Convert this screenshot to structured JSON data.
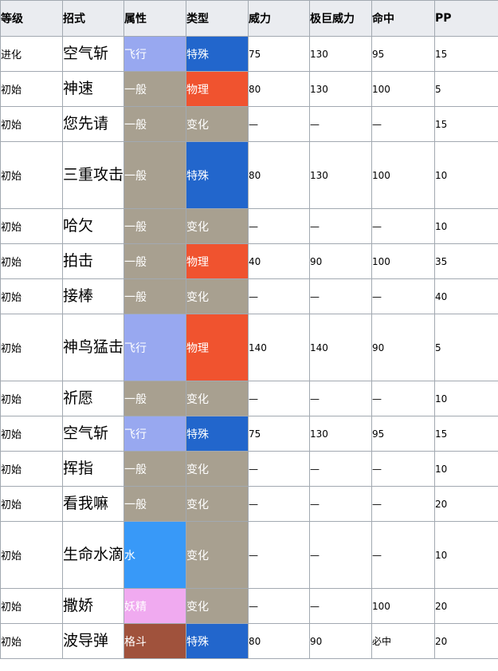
{
  "headers": {
    "level": "等级",
    "move": "招式",
    "type": "属性",
    "category": "类型",
    "power": "威力",
    "max_power": "极巨威力",
    "accuracy": "命中",
    "pp": "PP"
  },
  "colors": {
    "header_bg": "#eaecf0",
    "border": "#a2a9b1",
    "type_飞行": "#98a8f0",
    "type_一般": "#a8a090",
    "type_水": "#3899f8",
    "type_妖精": "#f0aaf0",
    "type_格斗": "#a0523c",
    "cat_特殊": "#2266cc",
    "cat_物理": "#f0532f",
    "cat_变化": "#a8a090"
  },
  "rows": [
    {
      "level": "进化",
      "move": "空气斩",
      "type": "飞行",
      "category": "特殊",
      "power": "75",
      "max_power": "130",
      "accuracy": "95",
      "pp": "15"
    },
    {
      "level": "初始",
      "move": "神速",
      "type": "一般",
      "category": "物理",
      "power": "80",
      "max_power": "130",
      "accuracy": "100",
      "pp": "5"
    },
    {
      "level": "初始",
      "move": "您先请",
      "type": "一般",
      "category": "变化",
      "power": "—",
      "max_power": "—",
      "accuracy": "—",
      "pp": "15"
    },
    {
      "level": "初始",
      "move": "三重攻击",
      "type": "一般",
      "category": "特殊",
      "power": "80",
      "max_power": "130",
      "accuracy": "100",
      "pp": "10"
    },
    {
      "level": "初始",
      "move": "哈欠",
      "type": "一般",
      "category": "变化",
      "power": "—",
      "max_power": "—",
      "accuracy": "—",
      "pp": "10"
    },
    {
      "level": "初始",
      "move": "拍击",
      "type": "一般",
      "category": "物理",
      "power": "40",
      "max_power": "90",
      "accuracy": "100",
      "pp": "35"
    },
    {
      "level": "初始",
      "move": "接棒",
      "type": "一般",
      "category": "变化",
      "power": "—",
      "max_power": "—",
      "accuracy": "—",
      "pp": "40"
    },
    {
      "level": "初始",
      "move": "神鸟猛击",
      "type": "飞行",
      "category": "物理",
      "power": "140",
      "max_power": "140",
      "accuracy": "90",
      "pp": "5"
    },
    {
      "level": "初始",
      "move": "祈愿",
      "type": "一般",
      "category": "变化",
      "power": "—",
      "max_power": "—",
      "accuracy": "—",
      "pp": "10"
    },
    {
      "level": "初始",
      "move": "空气斩",
      "type": "飞行",
      "category": "特殊",
      "power": "75",
      "max_power": "130",
      "accuracy": "95",
      "pp": "15"
    },
    {
      "level": "初始",
      "move": "挥指",
      "type": "一般",
      "category": "变化",
      "power": "—",
      "max_power": "—",
      "accuracy": "—",
      "pp": "10"
    },
    {
      "level": "初始",
      "move": "看我嘛",
      "type": "一般",
      "category": "变化",
      "power": "—",
      "max_power": "—",
      "accuracy": "—",
      "pp": "20"
    },
    {
      "level": "初始",
      "move": "生命水滴",
      "type": "水",
      "category": "变化",
      "power": "—",
      "max_power": "—",
      "accuracy": "—",
      "pp": "10"
    },
    {
      "level": "初始",
      "move": "撒娇",
      "type": "妖精",
      "category": "变化",
      "power": "—",
      "max_power": "—",
      "accuracy": "100",
      "pp": "20"
    },
    {
      "level": "初始",
      "move": "波导弹",
      "type": "格斗",
      "category": "特殊",
      "power": "80",
      "max_power": "90",
      "accuracy": "必中",
      "pp": "20"
    }
  ]
}
